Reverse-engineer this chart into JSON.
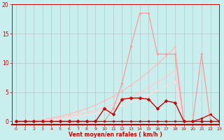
{
  "bg_color": "#c8eeee",
  "grid_color": "#b0b0b0",
  "xlabel": "Vent moyen/en rafales ( km/h )",
  "ylim": [
    -0.5,
    20
  ],
  "xlim": [
    -0.5,
    23
  ],
  "yticks": [
    0,
    5,
    10,
    15,
    20
  ],
  "xticks": [
    0,
    1,
    2,
    3,
    4,
    5,
    6,
    7,
    8,
    9,
    10,
    11,
    12,
    13,
    14,
    15,
    16,
    17,
    18,
    19,
    20,
    21,
    22,
    23
  ],
  "lines": [
    {
      "x": [
        0,
        1,
        2,
        3,
        4,
        5,
        6,
        7,
        8,
        9,
        10,
        11,
        12,
        13,
        14,
        15,
        16,
        17,
        18,
        19,
        20
      ],
      "y": [
        0,
        0,
        0.1,
        0.3,
        0.6,
        0.9,
        1.3,
        1.7,
        2.2,
        2.8,
        3.5,
        4.3,
        5.2,
        6.2,
        7.3,
        8.5,
        9.8,
        11.2,
        12.7,
        0,
        0
      ],
      "color": "#ffbbbb",
      "lw": 0.9,
      "marker": "o",
      "ms": 1.8
    },
    {
      "x": [
        0,
        1,
        2,
        3,
        4,
        5,
        6,
        7,
        8,
        9,
        10,
        11,
        12,
        13,
        14,
        15,
        16,
        17,
        18,
        19,
        20
      ],
      "y": [
        0,
        0,
        0.05,
        0.2,
        0.4,
        0.6,
        0.9,
        1.2,
        1.5,
        1.9,
        2.4,
        2.9,
        3.5,
        4.2,
        4.9,
        5.8,
        6.7,
        7.6,
        8.6,
        0,
        0
      ],
      "color": "#ffcccc",
      "lw": 0.9,
      "marker": "o",
      "ms": 1.8
    },
    {
      "x": [
        0,
        1,
        2,
        3,
        4,
        5,
        6,
        7,
        8,
        9,
        10,
        11,
        12,
        13,
        14,
        15,
        16,
        17,
        18,
        19,
        20
      ],
      "y": [
        0,
        0,
        0.02,
        0.1,
        0.2,
        0.4,
        0.6,
        0.8,
        1.1,
        1.4,
        1.8,
        2.2,
        2.7,
        3.3,
        3.9,
        4.6,
        5.3,
        6.1,
        6.9,
        0,
        0
      ],
      "color": "#ffdddd",
      "lw": 0.9,
      "marker": "o",
      "ms": 1.5
    },
    {
      "x": [
        0,
        1,
        2,
        3,
        4,
        5,
        6,
        7,
        8,
        9,
        10,
        11,
        12,
        13,
        14,
        15,
        16,
        17,
        18,
        19,
        20,
        21,
        22,
        23
      ],
      "y": [
        0,
        0,
        0,
        0,
        0,
        0,
        0,
        0,
        0,
        0,
        0,
        2.2,
        6.5,
        12.8,
        18.5,
        18.5,
        11.5,
        11.5,
        11.5,
        0,
        0,
        11.5,
        0,
        0
      ],
      "color": "#ff9999",
      "lw": 0.9,
      "marker": "o",
      "ms": 2.0
    },
    {
      "x": [
        0,
        1,
        2,
        3,
        4,
        5,
        6,
        7,
        8,
        9,
        10,
        11,
        12,
        13,
        14,
        15,
        16,
        17,
        18,
        19,
        20,
        21,
        22,
        23
      ],
      "y": [
        0,
        0,
        0,
        0,
        0,
        0,
        0,
        0,
        0,
        0,
        2.2,
        1.2,
        3.8,
        4.0,
        4.0,
        3.8,
        2.2,
        3.5,
        3.2,
        0,
        0,
        0,
        0,
        0
      ],
      "color": "#cc0000",
      "lw": 1.0,
      "marker": "D",
      "ms": 2.5
    },
    {
      "x": [
        0,
        1,
        2,
        3,
        4,
        5,
        6,
        7,
        8,
        9,
        10,
        11,
        12,
        13,
        14,
        15,
        16,
        17,
        18,
        19,
        20,
        21,
        22,
        23
      ],
      "y": [
        0,
        0,
        0,
        0,
        0,
        0,
        0,
        0,
        0,
        0,
        0,
        0,
        0,
        0,
        0,
        0,
        0,
        0,
        0,
        0,
        0,
        0.5,
        1.2,
        0
      ],
      "color": "#cc0000",
      "lw": 0.9,
      "marker": "o",
      "ms": 2.0
    }
  ]
}
